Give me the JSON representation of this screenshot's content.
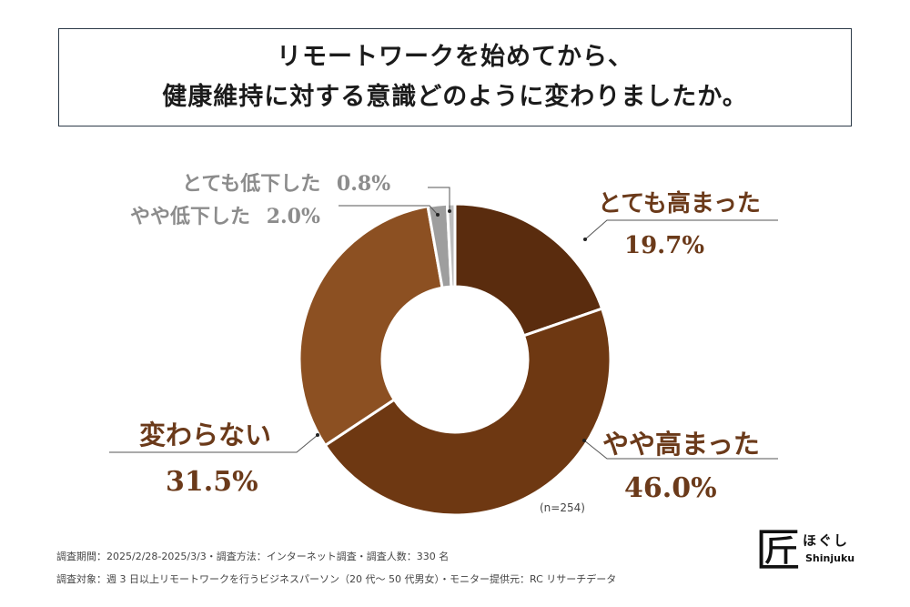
{
  "title": {
    "line1": "リモートワークを始めてから、",
    "line2": "健康維持に対する意識どのように変わりましたか。"
  },
  "chart_data": {
    "type": "pie",
    "title": "リモートワークを始めてから、健康維持に対する意識どのように変わりましたか。",
    "categories": [
      "とても高まった",
      "やや高まった",
      "変わらない",
      "やや低下した",
      "とても低下した"
    ],
    "values": [
      19.7,
      46.0,
      31.5,
      2.0,
      0.8
    ],
    "value_labels": [
      "19.7%",
      "46.0%",
      "31.5%",
      "2.0%",
      "0.8%"
    ],
    "colors": [
      "#5a2c0e",
      "#6e3812",
      "#8c5022",
      "#9e9e9e",
      "#bdbdbd"
    ],
    "note": "(n=254)"
  },
  "footer": {
    "line1": "調査期間：2025/2/28-2025/3/3・調査方法：インターネット調査・調査人数：330 名",
    "line2": "調査対象：週 3 日以上リモートワークを行うビジネスパーソン（20 代～ 50 代男女）・モニター提供元：RC リサーチデータ"
  },
  "logo": {
    "mark": "匠",
    "kana": "ほぐし",
    "roman": "Shinjuku"
  }
}
